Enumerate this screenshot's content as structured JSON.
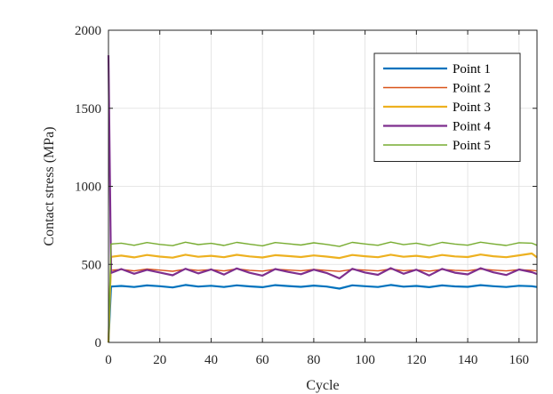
{
  "chart_data": {
    "type": "line",
    "title": "",
    "xlabel": "Cycle",
    "ylabel": "Contact stress (MPa)",
    "xlim": [
      0,
      167
    ],
    "ylim": [
      0,
      2000
    ],
    "x_ticks": [
      0,
      20,
      40,
      60,
      80,
      100,
      120,
      140,
      160
    ],
    "y_ticks": [
      0,
      500,
      1000,
      1500,
      2000
    ],
    "x_tick_labels": [
      "0",
      "20",
      "40",
      "60",
      "80",
      "100",
      "120",
      "140",
      "160"
    ],
    "y_tick_labels": [
      "0",
      "500",
      "1000",
      "1500",
      "2000"
    ],
    "grid": true,
    "legend_position": "top-right",
    "x": [
      0,
      1,
      5,
      10,
      15,
      20,
      25,
      30,
      35,
      40,
      45,
      50,
      55,
      60,
      65,
      70,
      75,
      80,
      85,
      90,
      95,
      100,
      105,
      110,
      115,
      120,
      125,
      130,
      135,
      140,
      145,
      150,
      155,
      160,
      165,
      167
    ],
    "series": [
      {
        "name": "Point 1",
        "color": "#0072BD",
        "width": 2.2,
        "values": [
          0,
          358,
          362,
          355,
          365,
          360,
          352,
          368,
          358,
          363,
          355,
          366,
          359,
          354,
          367,
          361,
          356,
          364,
          358,
          345,
          366,
          360,
          355,
          368,
          357,
          362,
          354,
          365,
          359,
          356,
          367,
          360,
          355,
          363,
          360,
          355
        ]
      },
      {
        "name": "Point 2",
        "color": "#D95319",
        "width": 1.4,
        "values": [
          0,
          462,
          468,
          458,
          470,
          463,
          456,
          469,
          461,
          466,
          458,
          471,
          462,
          457,
          469,
          464,
          459,
          467,
          461,
          455,
          468,
          463,
          458,
          470,
          460,
          465,
          457,
          468,
          462,
          459,
          470,
          463,
          458,
          466,
          462,
          458
        ]
      },
      {
        "name": "Point 3",
        "color": "#EDB120",
        "width": 2.2,
        "values": [
          0,
          548,
          556,
          545,
          560,
          550,
          543,
          562,
          549,
          555,
          546,
          561,
          551,
          544,
          559,
          553,
          547,
          557,
          550,
          541,
          560,
          552,
          546,
          562,
          549,
          555,
          545,
          560,
          551,
          547,
          563,
          552,
          546,
          558,
          570,
          545
        ]
      },
      {
        "name": "Point 4",
        "color": "#7E2F8E",
        "width": 2.2,
        "values": [
          1840,
          445,
          470,
          440,
          465,
          448,
          430,
          472,
          442,
          468,
          435,
          474,
          446,
          428,
          470,
          452,
          437,
          466,
          445,
          410,
          472,
          448,
          433,
          476,
          440,
          466,
          429,
          471,
          447,
          436,
          475,
          449,
          432,
          467,
          450,
          438
        ]
      },
      {
        "name": "Point 5",
        "color": "#77AC30",
        "width": 1.4,
        "values": [
          0,
          630,
          636,
          622,
          640,
          628,
          620,
          642,
          627,
          635,
          621,
          641,
          629,
          619,
          640,
          632,
          624,
          638,
          628,
          615,
          641,
          631,
          622,
          643,
          626,
          636,
          620,
          641,
          630,
          623,
          642,
          631,
          621,
          639,
          636,
          622
        ]
      }
    ]
  }
}
